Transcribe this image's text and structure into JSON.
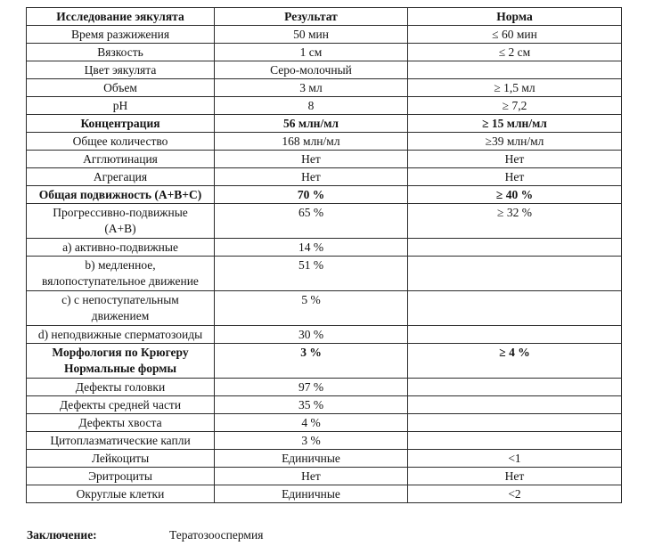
{
  "table": {
    "columns": [
      "Исследование эякулята",
      "Результат",
      "Норма"
    ],
    "rows": [
      {
        "label": "Время разжижения",
        "result": "50 мин",
        "norm": "≤ 60 мин",
        "bold": false
      },
      {
        "label": "Вязкость",
        "result": "1 см",
        "norm": "≤ 2 см",
        "bold": false
      },
      {
        "label": "Цвет эякулята",
        "result": "Серо-молочный",
        "norm": "",
        "bold": false
      },
      {
        "label": "Объем",
        "result": "3 мл",
        "norm": "≥ 1,5 мл",
        "bold": false
      },
      {
        "label": "pH",
        "result": "8",
        "norm": "≥ 7,2",
        "bold": false
      },
      {
        "label": "Концентрация",
        "result": "56 млн/мл",
        "norm": "≥ 15 млн/мл",
        "bold": true
      },
      {
        "label": "Общее количество",
        "result": "168 млн/мл",
        "norm": "≥39 млн/мл",
        "bold": false
      },
      {
        "label": "Агглютинация",
        "result": "Нет",
        "norm": "Нет",
        "bold": false
      },
      {
        "label": "Агрегация",
        "result": "Нет",
        "norm": "Нет",
        "bold": false
      },
      {
        "label": "Общая подвижность (A+B+C)",
        "result": "70 %",
        "norm": "≥ 40 %",
        "bold": true
      },
      {
        "label": "Прогрессивно-подвижные\n(A+B)",
        "result": "65 %",
        "norm": "≥ 32 %",
        "bold": false
      },
      {
        "label": "a) активно-подвижные",
        "result": "14 %",
        "norm": "",
        "bold": false
      },
      {
        "label": "b) медленное,\nвялопоступательное движение",
        "result": "51 %",
        "norm": "",
        "bold": false
      },
      {
        "label": "c) с непоступательным\nдвижением",
        "result": "5 %",
        "norm": "",
        "bold": false
      },
      {
        "label": "d) неподвижные сперматозоиды",
        "result": "30 %",
        "norm": "",
        "bold": false
      },
      {
        "label": "Морфология по Крюгеру\nНормальные формы",
        "result": "3 %",
        "norm": "≥ 4 %",
        "bold": true
      },
      {
        "label": "Дефекты головки",
        "result": "97 %",
        "norm": "",
        "bold": false
      },
      {
        "label": "Дефекты средней части",
        "result": "35 %",
        "norm": "",
        "bold": false
      },
      {
        "label": "Дефекты хвоста",
        "result": "4 %",
        "norm": "",
        "bold": false
      },
      {
        "label": "Цитоплазматические капли",
        "result": "3 %",
        "norm": "",
        "bold": false
      },
      {
        "label": "Лейкоциты",
        "result": "Единичные",
        "norm": "<1",
        "bold": false
      },
      {
        "label": "Эритроциты",
        "result": "Нет",
        "norm": "Нет",
        "bold": false
      },
      {
        "label": "Округлые клетки",
        "result": "Единичные",
        "norm": "<2",
        "bold": false
      }
    ]
  },
  "conclusion": {
    "label": "Заключение:",
    "value": "Тератозооспермия"
  },
  "colors": {
    "border": "#2b2b2b",
    "text": "#141414",
    "background": "#ffffff"
  }
}
